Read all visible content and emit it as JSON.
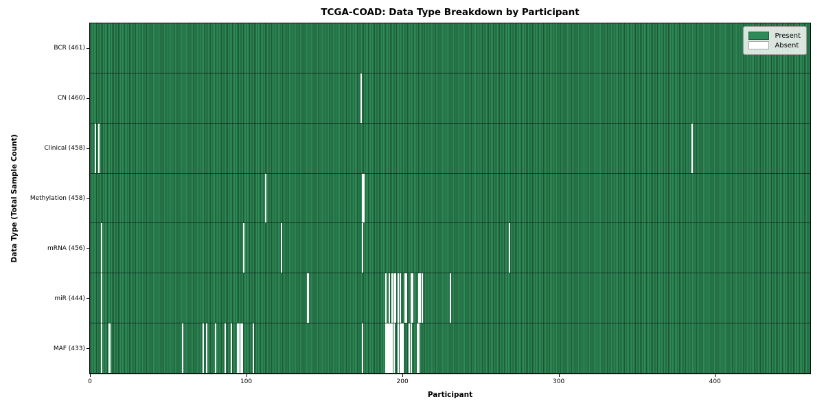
{
  "chart_data": {
    "type": "heatmap",
    "title": "TCGA-COAD: Data Type Breakdown by Participant",
    "xlabel": "Participant",
    "ylabel": "Data Type (Total Sample Count)",
    "n_participants": 461,
    "x_ticks": [
      0,
      100,
      200,
      300,
      400
    ],
    "colors": {
      "present": "#2e8b57",
      "absent": "#ffffff",
      "cell_edge": "rgba(0,0,0,0.38)",
      "row_divider": "rgba(0,0,0,0.55)"
    },
    "legend": [
      {
        "label": "Present",
        "color": "#2e8b57"
      },
      {
        "label": "Absent",
        "color": "#ffffff"
      }
    ],
    "rows": [
      {
        "label": "BCR (461)",
        "data_type": "BCR",
        "present_count": 461,
        "absent_participants": []
      },
      {
        "label": "CN (460)",
        "data_type": "CN",
        "present_count": 460,
        "absent_participants": [
          173
        ]
      },
      {
        "label": "Clinical (458)",
        "data_type": "Clinical",
        "present_count": 458,
        "absent_participants": [
          3,
          5,
          385
        ]
      },
      {
        "label": "Methylation (458)",
        "data_type": "Methylation",
        "present_count": 458,
        "absent_participants": [
          112,
          174,
          175
        ]
      },
      {
        "label": "mRNA (456)",
        "data_type": "mRNA",
        "present_count": 456,
        "absent_participants": [
          7,
          98,
          122,
          174,
          268
        ]
      },
      {
        "label": "miR (444)",
        "data_type": "miR",
        "present_count": 444,
        "absent_participants": [
          7,
          139,
          189,
          191,
          193,
          194,
          195,
          197,
          198,
          201,
          202,
          205,
          206,
          210,
          211,
          212,
          230
        ]
      },
      {
        "label": "MAF (433)",
        "data_type": "MAF",
        "present_count": 433,
        "absent_participants": [
          7,
          12,
          59,
          72,
          74,
          80,
          86,
          90,
          94,
          95,
          96,
          97,
          104,
          174,
          189,
          190,
          191,
          192,
          193,
          194,
          197,
          198,
          199,
          200,
          204,
          205,
          209,
          210
        ]
      }
    ]
  }
}
